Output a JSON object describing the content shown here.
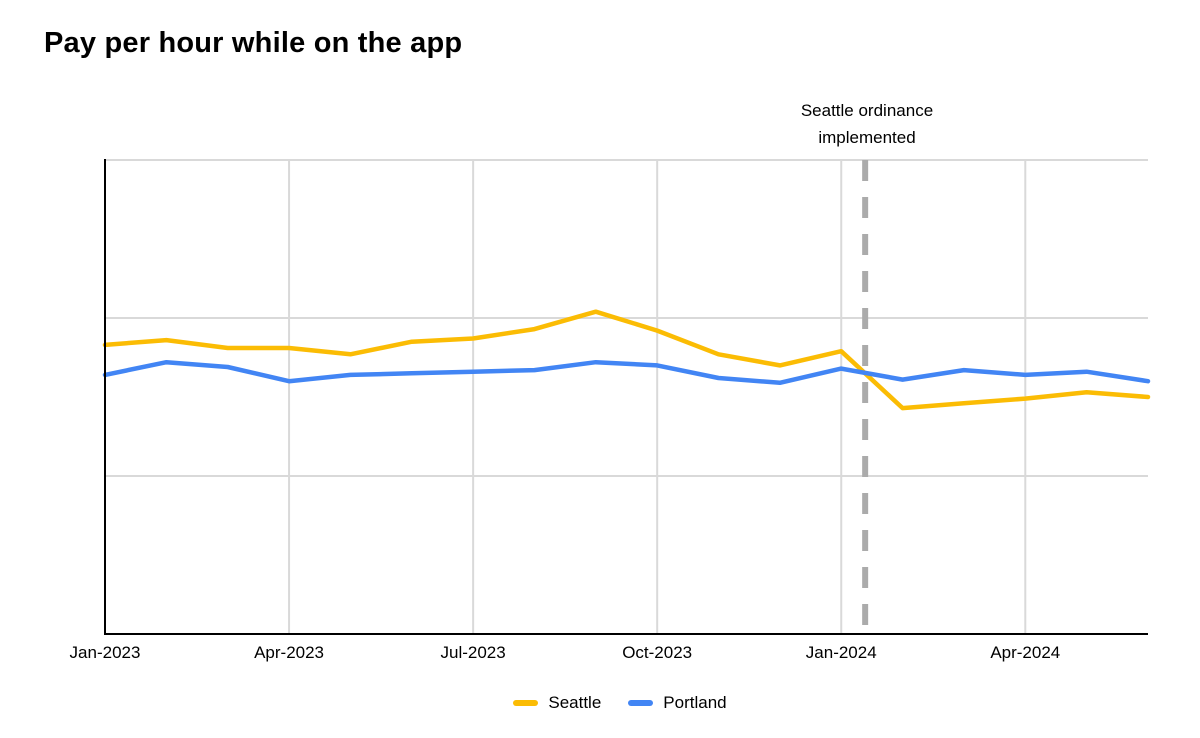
{
  "title": "Pay per hour while on the app",
  "chart_data": {
    "type": "line",
    "x": [
      "Jan-2023",
      "Feb-2023",
      "Mar-2023",
      "Apr-2023",
      "May-2023",
      "Jun-2023",
      "Jul-2023",
      "Aug-2023",
      "Sep-2023",
      "Oct-2023",
      "Nov-2023",
      "Dec-2023",
      "Jan-2024",
      "Feb-2024",
      "Mar-2024",
      "Apr-2024",
      "May-2024",
      "Jun-2024"
    ],
    "x_tick_indices": [
      0,
      3,
      6,
      9,
      12,
      15
    ],
    "x_tick_labels": [
      "Jan-2023",
      "Apr-2023",
      "Jul-2023",
      "Oct-2023",
      "Jan-2024",
      "Apr-2024"
    ],
    "series": [
      {
        "name": "Seattle",
        "color": "#FBBC04",
        "values": [
          1.83,
          1.86,
          1.81,
          1.81,
          1.77,
          1.85,
          1.87,
          1.93,
          2.04,
          1.92,
          1.77,
          1.7,
          1.79,
          1.43,
          1.46,
          1.49,
          1.53,
          1.5
        ]
      },
      {
        "name": "Portland",
        "color": "#4285F4",
        "values": [
          1.64,
          1.72,
          1.69,
          1.6,
          1.64,
          1.65,
          1.66,
          1.67,
          1.72,
          1.7,
          1.62,
          1.59,
          1.68,
          1.61,
          1.67,
          1.64,
          1.66,
          1.6
        ]
      }
    ],
    "ylim": [
      0,
      3
    ],
    "y_axis_labels_visible": false,
    "y_unit": "unlabeled gridline units (no y tick labels shown)",
    "y_gridlines": [
      1,
      2,
      3
    ],
    "grid": true,
    "legend_position": "bottom",
    "annotation": {
      "text": "Seattle ordinance implemented",
      "line_x_index": 12.39,
      "line_style": "dashed"
    }
  },
  "legend": {
    "items": [
      {
        "label": "Seattle",
        "color": "#FBBC04"
      },
      {
        "label": "Portland",
        "color": "#4285F4"
      }
    ]
  },
  "colors": {
    "seattle": "#FBBC04",
    "portland": "#4285F4",
    "gridline": "#D9D9D9",
    "axis": "#000000",
    "dashed_line": "#ABABAB",
    "text": "#000000"
  }
}
